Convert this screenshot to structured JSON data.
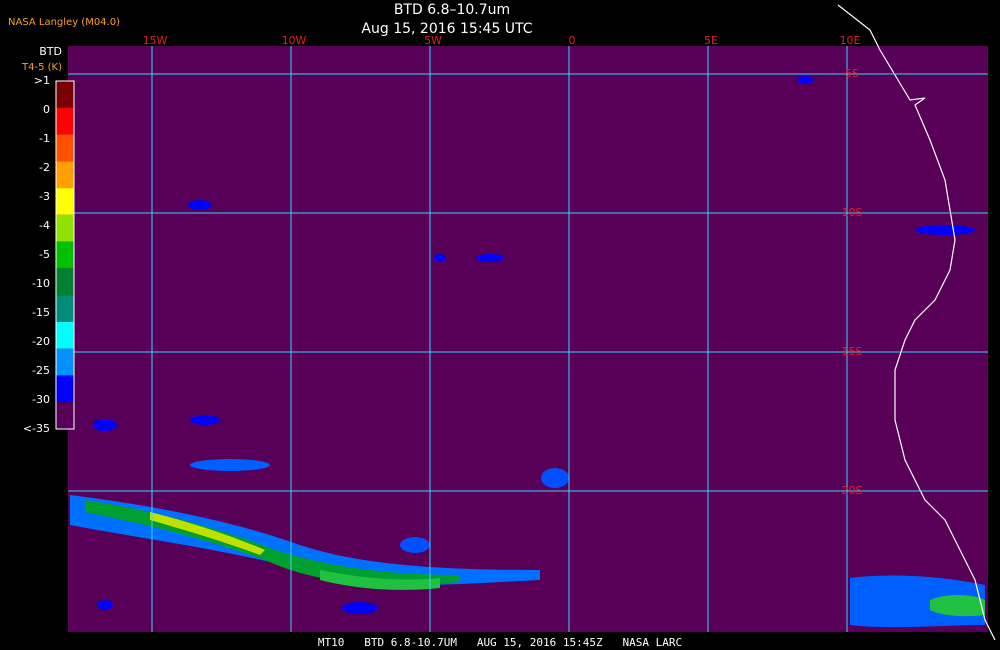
{
  "header": {
    "source": "NASA Langley (M04.0)",
    "title": "BTD 6.8–10.7um",
    "subtitle": "Aug 15, 2016 15:45 UTC"
  },
  "footer": "MT10   BTD 6.8-10.7UM   AUG 15, 2016 15:45Z   NASA LARC",
  "longitude_labels": [
    "15W",
    "10W",
    "5W",
    "0",
    "5E",
    "10E"
  ],
  "latitude_labels": [
    "5S",
    "10S",
    "15S",
    "20S"
  ],
  "legend": {
    "title": "BTD",
    "unit": "T4-5 (K)",
    "items": [
      {
        "label": ">1",
        "color": "#780000"
      },
      {
        "label": "0",
        "color": "#ff0000"
      },
      {
        "label": "-1",
        "color": "#ff5000"
      },
      {
        "label": "-2",
        "color": "#ffa000"
      },
      {
        "label": "-3",
        "color": "#ffff00"
      },
      {
        "label": "-4",
        "color": "#90e000"
      },
      {
        "label": "-5",
        "color": "#00c000"
      },
      {
        "label": "-10",
        "color": "#008030"
      },
      {
        "label": "-15",
        "color": "#008c78"
      },
      {
        "label": "-20",
        "color": "#00ffff"
      },
      {
        "label": "-25",
        "color": "#0090ff"
      },
      {
        "label": "-30",
        "color": "#0000ff"
      },
      {
        "label": "<-35",
        "color": "#580058"
      }
    ]
  }
}
